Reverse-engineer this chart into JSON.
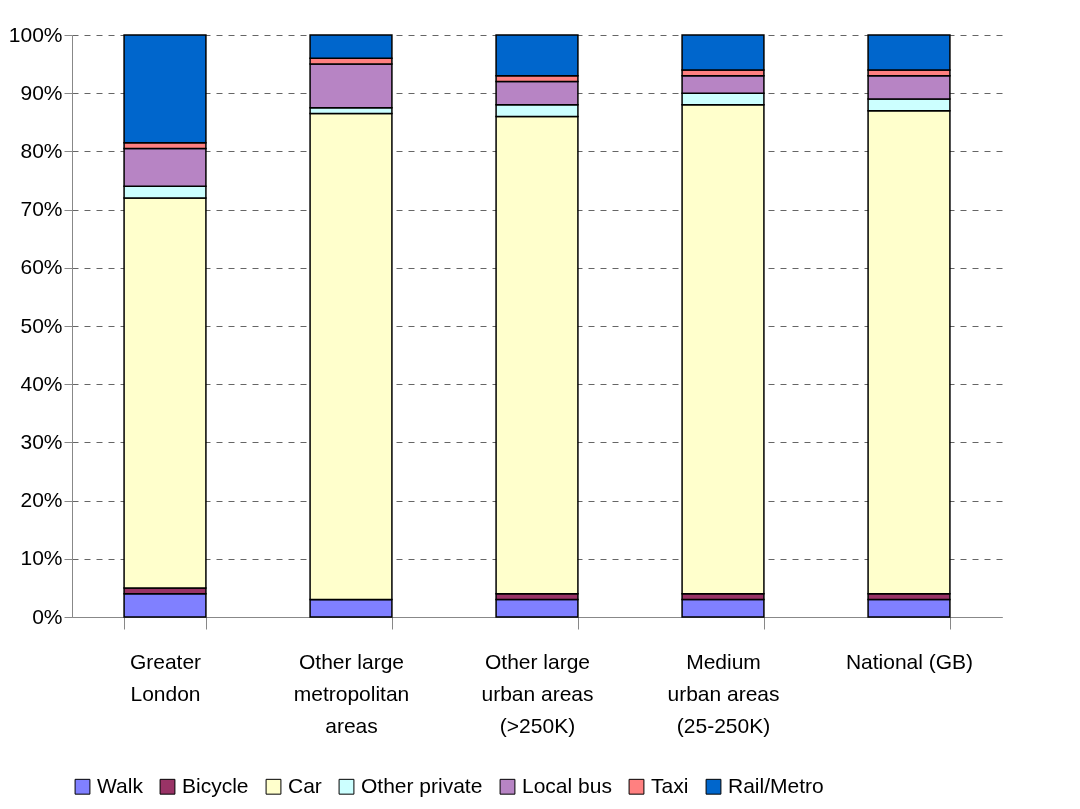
{
  "chart_data": {
    "type": "bar",
    "stacked": true,
    "categories": [
      "Greater London",
      "Other large metropolitan areas",
      "Other large urban areas (>250K)",
      "Medium urban areas (25-250K)",
      "National (GB)"
    ],
    "series": [
      {
        "name": "Walk",
        "color": "#8080ff",
        "values": [
          4,
          3,
          3,
          3,
          3
        ]
      },
      {
        "name": "Bicycle",
        "color": "#993366",
        "values": [
          1,
          0,
          1,
          1,
          1
        ]
      },
      {
        "name": "Car",
        "color": "#ffffcc",
        "values": [
          67,
          83.5,
          82,
          84,
          83
        ]
      },
      {
        "name": "Other private",
        "color": "#ccffff",
        "values": [
          2,
          1,
          2,
          2,
          2
        ]
      },
      {
        "name": "Local bus",
        "color": "#b784c4",
        "values": [
          6.5,
          7.5,
          4,
          3,
          4
        ]
      },
      {
        "name": "Taxi",
        "color": "#ff8080",
        "values": [
          1,
          1,
          1,
          1,
          1
        ]
      },
      {
        "name": "Rail/Metro",
        "color": "#0066cc",
        "values": [
          18.5,
          4,
          7,
          6,
          6
        ]
      }
    ],
    "ylim": [
      0,
      100
    ],
    "yticks": [
      {
        "value": 0,
        "label": "0%"
      },
      {
        "value": 10,
        "label": "10%"
      },
      {
        "value": 20,
        "label": "20%"
      },
      {
        "value": 30,
        "label": "30%"
      },
      {
        "value": 40,
        "label": "40%"
      },
      {
        "value": 50,
        "label": "50%"
      },
      {
        "value": 60,
        "label": "60%"
      },
      {
        "value": 70,
        "label": "70%"
      },
      {
        "value": 80,
        "label": "80%"
      },
      {
        "value": 90,
        "label": "90%"
      },
      {
        "value": 100,
        "label": "100%"
      }
    ],
    "grid": "y",
    "legend": "bottom"
  }
}
